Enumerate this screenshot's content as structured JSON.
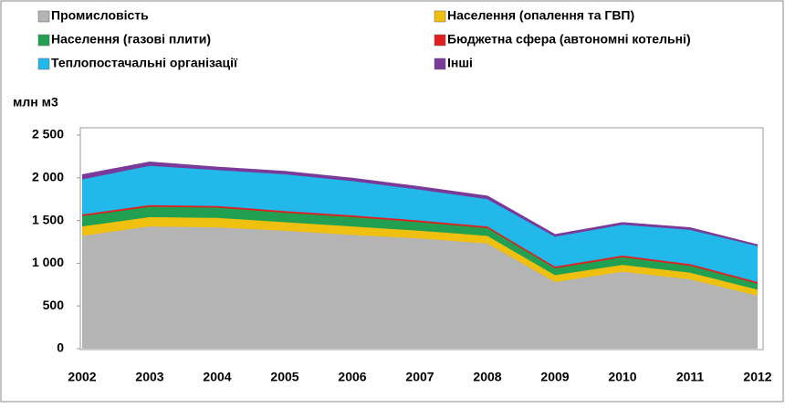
{
  "chart_data": {
    "type": "area",
    "stacked": true,
    "y_label": "млн м3",
    "categories": [
      "2002",
      "2003",
      "2004",
      "2005",
      "2006",
      "2007",
      "2008",
      "2009",
      "2010",
      "2011",
      "2012"
    ],
    "series": [
      {
        "name": "Промисловість",
        "color": "#b4b4b4",
        "values": [
          1320,
          1430,
          1420,
          1380,
          1330,
          1290,
          1230,
          780,
          900,
          810,
          620
        ]
      },
      {
        "name": "Населення (опалення та ГВП)",
        "color": "#f0c010",
        "values": [
          110,
          110,
          110,
          100,
          100,
          90,
          90,
          80,
          80,
          80,
          70
        ]
      },
      {
        "name": "Населення (газові плити)",
        "color": "#20a050",
        "values": [
          120,
          120,
          120,
          110,
          110,
          100,
          90,
          80,
          90,
          80,
          70
        ]
      },
      {
        "name": "Бюджетна сфера (автономні котельні)",
        "color": "#e02020",
        "values": [
          20,
          20,
          20,
          20,
          20,
          20,
          20,
          20,
          20,
          20,
          20
        ]
      },
      {
        "name": "Теплопостачальні організації",
        "color": "#22b8ea",
        "values": [
          410,
          460,
          420,
          430,
          400,
          360,
          320,
          350,
          360,
          400,
          420
        ]
      },
      {
        "name": "Інші",
        "color": "#7a3a9a",
        "values": [
          50,
          40,
          30,
          30,
          30,
          30,
          30,
          20,
          20,
          20,
          10
        ]
      }
    ],
    "ylim": [
      0,
      2500
    ],
    "yticks": [
      0,
      500,
      {
        "value": 1000,
        "label": "1 000"
      },
      {
        "value": 1500,
        "label": "1 500"
      },
      {
        "value": 2000,
        "label": "2 000"
      },
      {
        "value": 2500,
        "label": "2 500"
      }
    ],
    "legend": "top"
  }
}
